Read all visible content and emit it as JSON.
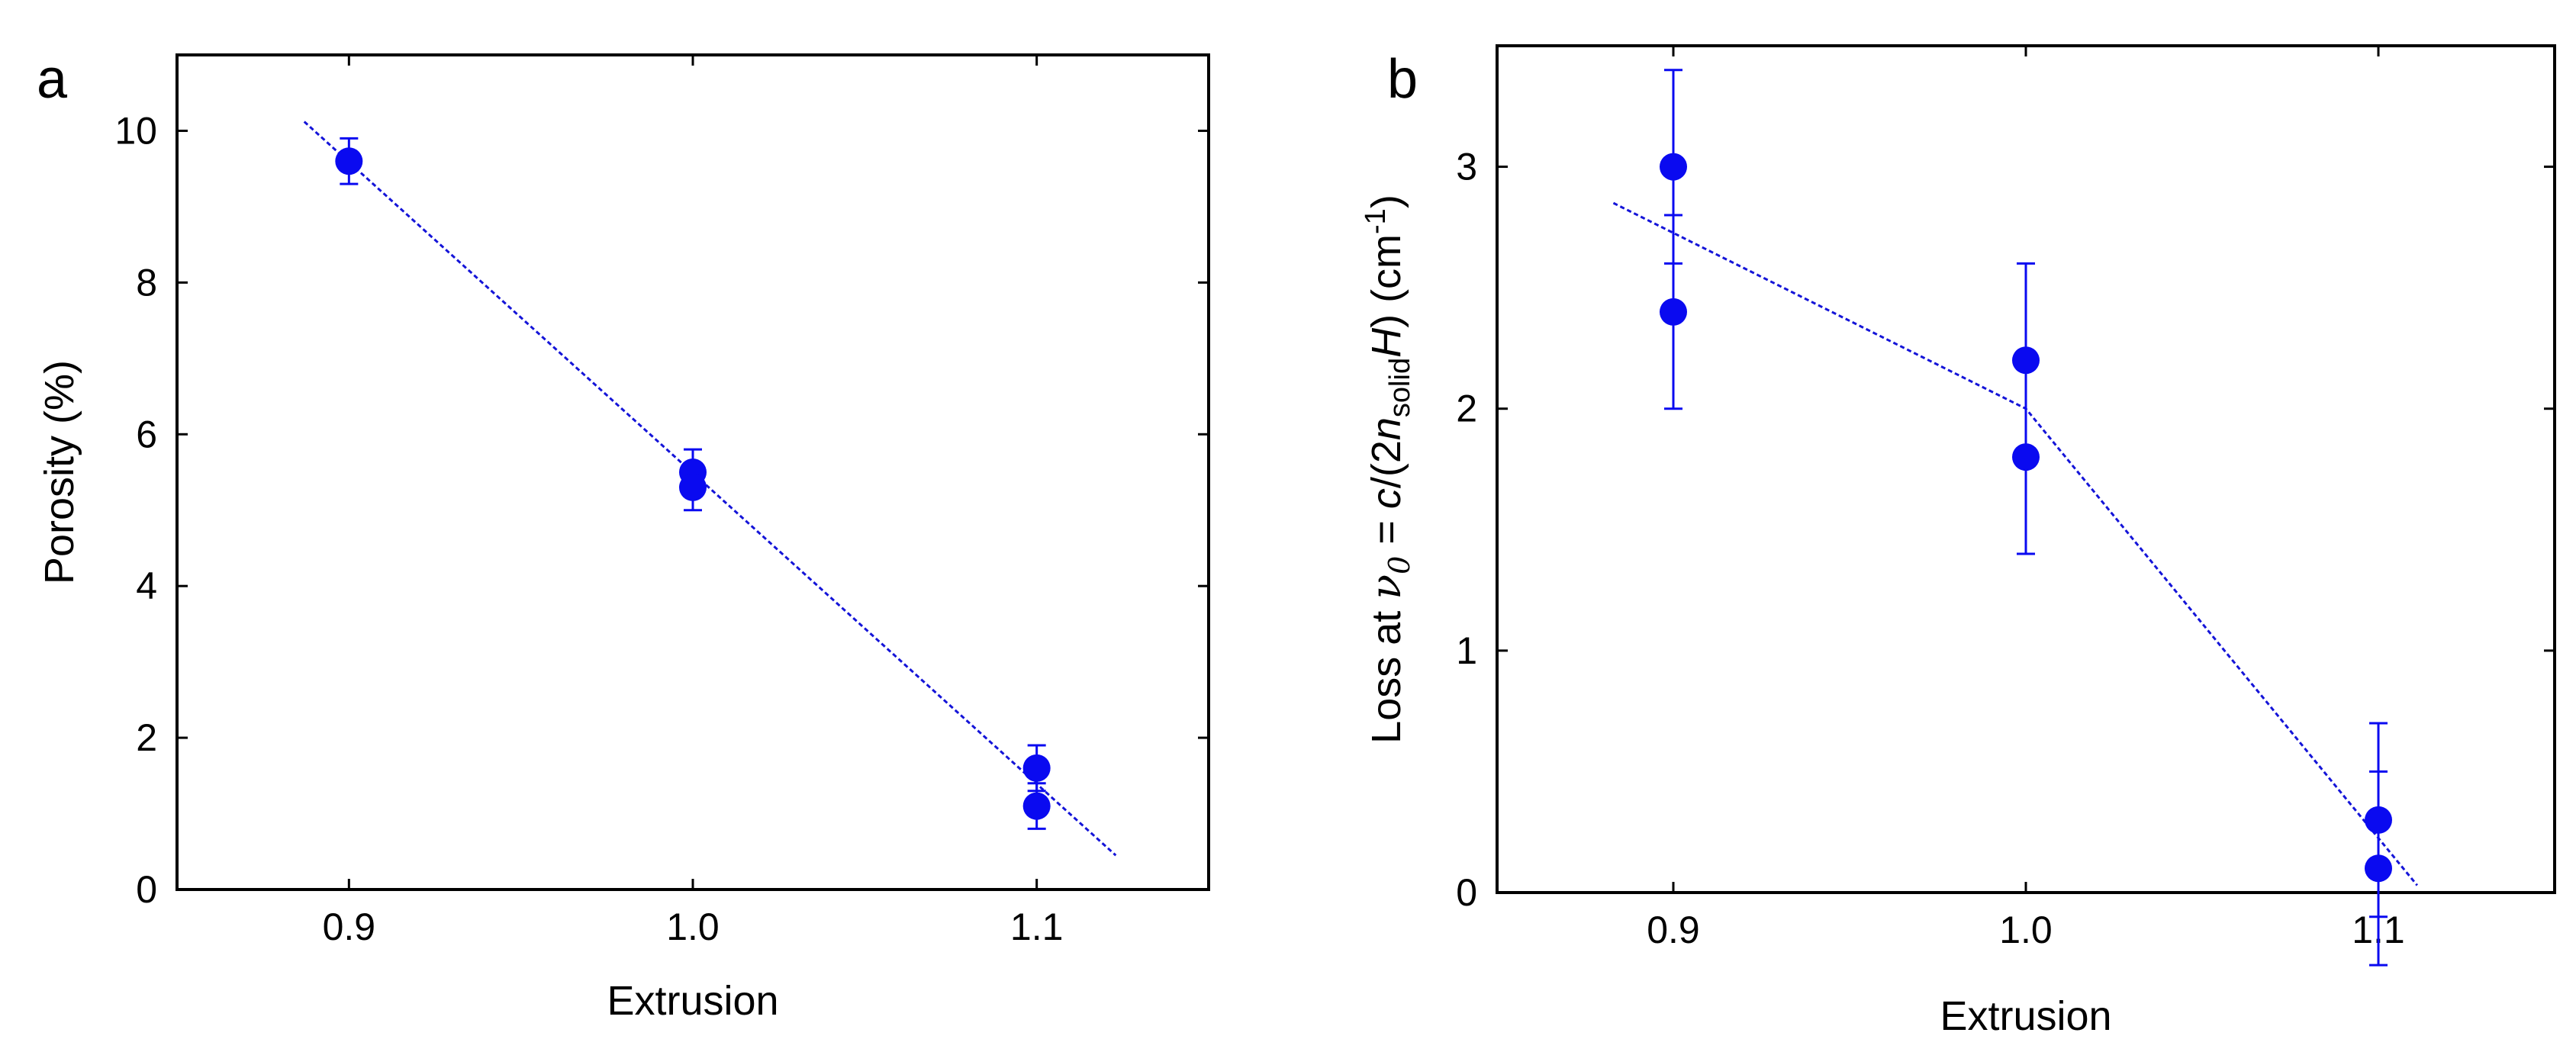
{
  "colors": {
    "marker": "#0a0af0",
    "fit_line": "#1414d8",
    "axis": "#000000"
  },
  "chart_data": [
    {
      "panel": "a",
      "type": "scatter",
      "xlabel": "Extrusion",
      "ylabel": "Porosity (%)",
      "xlim": [
        0.85,
        1.15
      ],
      "ylim": [
        0,
        11
      ],
      "xticks": [
        0.9,
        1.0,
        1.1
      ],
      "xtick_labels": [
        "0.9",
        "1.0",
        "1.1"
      ],
      "yticks": [
        0,
        2,
        4,
        6,
        8,
        10
      ],
      "ytick_labels": [
        "0",
        "2",
        "4",
        "6",
        "8",
        "10"
      ],
      "points": [
        {
          "x": 0.9,
          "y": 9.6,
          "err": 0.3
        },
        {
          "x": 1.0,
          "y": 5.5,
          "err": 0.3
        },
        {
          "x": 1.0,
          "y": 5.3,
          "err": 0.3
        },
        {
          "x": 1.1,
          "y": 1.6,
          "err": 0.3
        },
        {
          "x": 1.1,
          "y": 1.1,
          "err": 0.3
        }
      ],
      "fit_line": [
        {
          "x": 0.887,
          "y": 10.12
        },
        {
          "x": 1.123,
          "y": 0.45
        }
      ]
    },
    {
      "panel": "b",
      "type": "scatter",
      "xlabel": "Extrusion",
      "ylabel": {
        "prefix": "Loss at ",
        "nu": "ν",
        "nu_sub": "0",
        "eq": " = ",
        "c": "c",
        "slash": "/(2",
        "n": "n",
        "n_sub": "solid",
        "H": "H",
        "close": ") (cm",
        "exp": "-1",
        "end": ")"
      },
      "xlim": [
        0.85,
        1.15
      ],
      "ylim": [
        0,
        3.5
      ],
      "xticks": [
        0.9,
        1.0,
        1.1
      ],
      "xtick_labels": [
        "0.9",
        "1.0",
        "1.1"
      ],
      "yticks": [
        0,
        1,
        2,
        3
      ],
      "ytick_labels": [
        "0",
        "1",
        "2",
        "3"
      ],
      "points": [
        {
          "x": 0.9,
          "y": 3.0,
          "err": 0.4
        },
        {
          "x": 0.9,
          "y": 2.4,
          "err": 0.4
        },
        {
          "x": 1.0,
          "y": 2.2,
          "err": 0.4
        },
        {
          "x": 1.0,
          "y": 1.8,
          "err": 0.4
        },
        {
          "x": 1.1,
          "y": 0.3,
          "err": 0.4
        },
        {
          "x": 1.1,
          "y": 0.1,
          "err": 0.4
        }
      ],
      "fit_line": [
        {
          "x": 0.883,
          "y": 2.85
        },
        {
          "x": 1.0,
          "y": 2.0
        },
        {
          "x": 1.111,
          "y": 0.03
        }
      ]
    }
  ]
}
